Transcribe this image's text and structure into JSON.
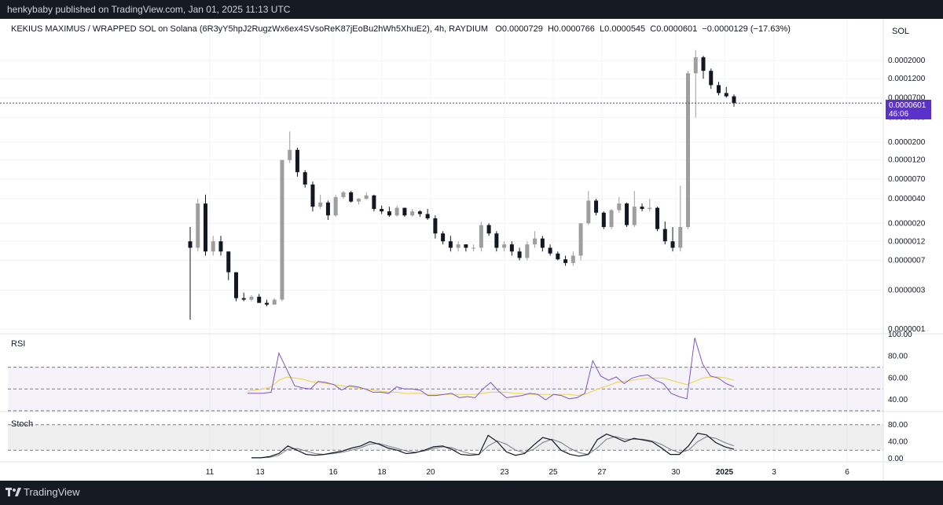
{
  "header": {
    "published": "henkybaby published on TradingView.com, Jan 01, 2025 11:13 UTC"
  },
  "legend": {
    "symbol": "KEKIUS MAXIMUS / WRAPPED SOL on Solana (6R3yY5hpJ2RugzWx6ex4SVsoReK87jEoBu2hWh5XhuE2), 4h, RAYDIUM",
    "o_label": "O",
    "o_value": "0.0000729",
    "h_label": "H",
    "h_value": "0.0000766",
    "l_label": "L",
    "l_value": "0.0000545",
    "c_label": "C",
    "c_value": "0.0000601",
    "change": "−0.0000129 (−17.63%)"
  },
  "currency_button": "SOL",
  "last_price_tag": {
    "price": "0.0000601",
    "countdown": "46:06"
  },
  "price_scale": {
    "labels": [
      "0.0002000",
      "0.0001200",
      "0.0000700",
      "0.0000400",
      "0.0000200",
      "0.0000120",
      "0.0000070",
      "0.0000040",
      "0.0000020",
      "0.0000012",
      "0.0000007",
      "0.0000003",
      "0.0000001"
    ]
  },
  "rsi_pane": {
    "title": "RSI",
    "labels": [
      "100.00",
      "80.00",
      "60.00",
      "40.00"
    ]
  },
  "stoch_pane": {
    "title": "Stoch",
    "labels": [
      "80.00",
      "40.00",
      "0.00"
    ]
  },
  "time_axis": {
    "labels": [
      "11",
      "13",
      "16",
      "18",
      "20",
      "23",
      "25",
      "27",
      "30",
      "2025",
      "3",
      "6"
    ]
  },
  "footer": {
    "brand": "TradingView"
  },
  "colors": {
    "candle_up": "#9e9e9e",
    "candle_down": "#131722",
    "rsi_line": "#7e57c2",
    "rsi_ma": "#f0d75a",
    "rsi_band": "#7e57c2",
    "stoch_k": "#131722",
    "stoch_d": "#787b86",
    "last_price": "#5b32c9"
  },
  "chart_data": [
    {
      "type": "candlestick",
      "title": "KEKIUS MAXIMUS / WRAPPED SOL on Solana, 4h, RAYDIUM",
      "y_scale": "log",
      "x_ticks": [
        "11",
        "13",
        "16",
        "18",
        "20",
        "23",
        "25",
        "27",
        "30",
        "2025",
        "3",
        "6"
      ],
      "y_ticks": [
        0.0002,
        0.00012,
        7e-05,
        4e-05,
        2e-05,
        1.2e-05,
        7e-06,
        4e-06,
        2e-06,
        1.2e-06,
        7e-07,
        3e-07,
        1e-07
      ],
      "ylim": [
        1e-07,
        0.0003
      ],
      "last_close": 6.01e-05,
      "candles_ohlc": [
        [
          1.2e-06,
          1.8e-06,
          1.3e-07,
          1e-06
        ],
        [
          1e-06,
          4e-06,
          9e-07,
          3.5e-06
        ],
        [
          3.5e-06,
          4.5e-06,
          8e-07,
          9e-07
        ],
        [
          9e-07,
          1.4e-06,
          8e-07,
          1.2e-06
        ],
        [
          1.2e-06,
          1.4e-06,
          8e-07,
          9e-07
        ],
        [
          9e-07,
          9e-07,
          4e-07,
          5e-07
        ],
        [
          5e-07,
          5e-07,
          2.2e-07,
          2.4e-07
        ],
        [
          2.4e-07,
          2.8e-07,
          2.2e-07,
          2.3e-07
        ],
        [
          2.3e-07,
          2.6e-07,
          2.2e-07,
          2.5e-07
        ],
        [
          2.5e-07,
          2.7e-07,
          2.1e-07,
          2.1e-07
        ],
        [
          2.1e-07,
          2.3e-07,
          1.9e-07,
          2e-07
        ],
        [
          2e-07,
          2.4e-07,
          2e-07,
          2.3e-07
        ],
        [
          2.3e-07,
          1.5e-06,
          2.2e-07,
          1.2e-05
        ],
        [
          1.2e-05,
          2.7e-05,
          1.1e-05,
          1.6e-05
        ],
        [
          1.6e-05,
          1.7e-05,
          7.5e-06,
          8.5e-06
        ],
        [
          8.5e-06,
          9e-06,
          5.5e-06,
          6e-06
        ],
        [
          6e-06,
          6.5e-06,
          2.8e-06,
          3.2e-06
        ],
        [
          3.2e-06,
          4.5e-06,
          3e-06,
          3.6e-06
        ],
        [
          3.6e-06,
          3.8e-06,
          2.2e-06,
          2.5e-06
        ],
        [
          2.5e-06,
          4.5e-06,
          2.4e-06,
          4.2e-06
        ],
        [
          4.2e-06,
          5e-06,
          4e-06,
          4.8e-06
        ],
        [
          4.8e-06,
          5e-06,
          3.6e-06,
          3.7e-06
        ],
        [
          3.7e-06,
          4.1e-06,
          3.4e-06,
          4e-06
        ],
        [
          4e-06,
          4.8e-06,
          3.9e-06,
          4.4e-06
        ],
        [
          4.4e-06,
          4.5e-06,
          2.8e-06,
          3e-06
        ],
        [
          3e-06,
          3.3e-06,
          2.6e-06,
          2.8e-06
        ],
        [
          2.8e-06,
          3.2e-06,
          2.4e-06,
          2.5e-06
        ],
        [
          2.5e-06,
          3.3e-06,
          2.4e-06,
          3.1e-06
        ],
        [
          3.1e-06,
          3.1e-06,
          2.4e-06,
          2.5e-06
        ],
        [
          2.5e-06,
          3e-06,
          2.4e-06,
          2.8e-06
        ],
        [
          2.8e-06,
          2.9e-06,
          2.4e-06,
          2.6e-06
        ],
        [
          2.6e-06,
          3e-06,
          2.2e-06,
          2.3e-06
        ],
        [
          2.3e-06,
          2.5e-06,
          1.3e-06,
          1.5e-06
        ],
        [
          1.5e-06,
          1.6e-06,
          1.1e-06,
          1.2e-06
        ],
        [
          1.2e-06,
          1.4e-06,
          9e-07,
          1e-06
        ],
        [
          1e-06,
          1.2e-06,
          9e-07,
          1.1e-06
        ],
        [
          1.1e-06,
          1.1e-06,
          9e-07,
          1e-06
        ],
        [
          1e-06,
          1.1e-06,
          9e-07,
          1e-06
        ],
        [
          1e-06,
          2.1e-06,
          9e-07,
          1.9e-06
        ],
        [
          1.9e-06,
          2e-06,
          1.4e-06,
          1.5e-06
        ],
        [
          1.5e-06,
          1.6e-06,
          9e-07,
          1e-06
        ],
        [
          1e-06,
          1.2e-06,
          9e-07,
          1.1e-06
        ],
        [
          1.1e-06,
          1.2e-06,
          8e-07,
          9e-07
        ],
        [
          9e-07,
          1e-06,
          7e-07,
          7.5e-07
        ],
        [
          7.5e-07,
          1.2e-06,
          7e-07,
          1.1e-06
        ],
        [
          1.1e-06,
          1.6e-06,
          1e-06,
          1.3e-06
        ],
        [
          1.3e-06,
          1.4e-06,
          9e-07,
          1e-06
        ],
        [
          1e-06,
          1.1e-06,
          8e-07,
          8.5e-07
        ],
        [
          8.5e-07,
          9e-07,
          7e-07,
          7.2e-07
        ],
        [
          7.2e-07,
          8e-07,
          6e-07,
          6.5e-07
        ],
        [
          6.5e-07,
          9e-07,
          6e-07,
          8e-07
        ],
        [
          8e-07,
          2e-06,
          7e-07,
          2e-06
        ],
        [
          2e-06,
          5e-06,
          1.9e-06,
          3.8e-06
        ],
        [
          3.8e-06,
          4e-06,
          2.5e-06,
          2.7e-06
        ],
        [
          2.7e-06,
          2.8e-06,
          1.7e-06,
          1.8e-06
        ],
        [
          1.8e-06,
          3e-06,
          1.7e-06,
          2.9e-06
        ],
        [
          2.9e-06,
          4.2e-06,
          2.7e-06,
          3.5e-06
        ],
        [
          3.5e-06,
          3.6e-06,
          1.8e-06,
          1.9e-06
        ],
        [
          1.9e-06,
          5e-06,
          1.8e-06,
          3.2e-06
        ],
        [
          3.2e-06,
          3.5e-06,
          2.8e-06,
          3e-06
        ],
        [
          3e-06,
          4e-06,
          2.8e-06,
          3.1e-06
        ],
        [
          3.1e-06,
          3.2e-06,
          1.6e-06,
          1.7e-06
        ],
        [
          1.7e-06,
          2.1e-06,
          1.1e-06,
          1.2e-06
        ],
        [
          1.2e-06,
          1.8e-06,
          9e-07,
          1e-06
        ],
        [
          1e-06,
          5.8e-06,
          9e-07,
          1.8e-06
        ],
        [
          1.8e-06,
          0.00015,
          1.7e-06,
          0.00014
        ],
        [
          0.00014,
          0.00027,
          4e-05,
          0.00022
        ],
        [
          0.00022,
          0.00023,
          0.00012,
          0.00015
        ],
        [
          0.00015,
          0.00016,
          9e-05,
          0.0001
        ],
        [
          0.0001,
          0.00011,
          7.5e-05,
          8e-05
        ],
        [
          8e-05,
          9.5e-05,
          7e-05,
          7.29e-05
        ],
        [
          7.29e-05,
          7.66e-05,
          5.45e-05,
          6.01e-05
        ]
      ]
    },
    {
      "type": "line",
      "title": "RSI",
      "ylim": [
        30,
        100
      ],
      "y_ticks": [
        100,
        80,
        60,
        40
      ],
      "bands": [
        70,
        50,
        30
      ],
      "series": [
        {
          "values": [
            46,
            46,
            46,
            47,
            83,
            68,
            53,
            51,
            50,
            57,
            56,
            54,
            49,
            53,
            52,
            50,
            47,
            47,
            46,
            52,
            50,
            50,
            49,
            44,
            44,
            45,
            46,
            42,
            43,
            42,
            50,
            56,
            48,
            42,
            43,
            44,
            46,
            45,
            40,
            45,
            44,
            41,
            42,
            46,
            76,
            62,
            58,
            61,
            55,
            60,
            62,
            63,
            58,
            55,
            46,
            43,
            41,
            97,
            73,
            62,
            60,
            55,
            52
          ]
        },
        {
          "values": [
            48,
            49,
            50,
            52,
            58,
            61,
            60,
            59,
            57,
            56,
            55,
            54,
            53,
            52,
            51,
            50,
            49,
            48,
            47,
            47,
            46,
            46,
            46,
            45,
            45,
            45,
            45,
            45,
            45,
            45,
            46,
            47,
            47,
            47,
            46,
            46,
            45,
            45,
            45,
            45,
            45,
            45,
            44,
            45,
            48,
            51,
            53,
            56,
            57,
            58,
            59,
            60,
            60,
            60,
            58,
            56,
            54,
            57,
            60,
            61,
            61,
            60,
            58
          ]
        }
      ]
    },
    {
      "type": "line",
      "title": "Stoch",
      "ylim": [
        0,
        100
      ],
      "y_ticks": [
        80,
        40,
        0
      ],
      "bands": [
        80,
        20
      ],
      "series": [
        {
          "values": [
            2,
            2,
            5,
            12,
            30,
            20,
            10,
            8,
            10,
            14,
            18,
            25,
            30,
            40,
            34,
            25,
            20,
            12,
            14,
            20,
            28,
            30,
            22,
            10,
            8,
            10,
            55,
            40,
            16,
            8,
            12,
            32,
            50,
            44,
            20,
            10,
            6,
            10,
            45,
            58,
            50,
            40,
            48,
            44,
            40,
            26,
            10,
            10,
            30,
            60,
            56,
            38,
            28,
            22
          ]
        },
        {
          "values": [
            2,
            2,
            3,
            8,
            22,
            24,
            18,
            12,
            10,
            12,
            15,
            20,
            26,
            34,
            36,
            30,
            24,
            18,
            15,
            18,
            24,
            28,
            26,
            18,
            12,
            10,
            30,
            42,
            34,
            20,
            14,
            22,
            38,
            46,
            38,
            24,
            14,
            10,
            26,
            46,
            52,
            46,
            46,
            46,
            42,
            34,
            22,
            14,
            20,
            40,
            52,
            48,
            38,
            30
          ]
        }
      ]
    }
  ]
}
